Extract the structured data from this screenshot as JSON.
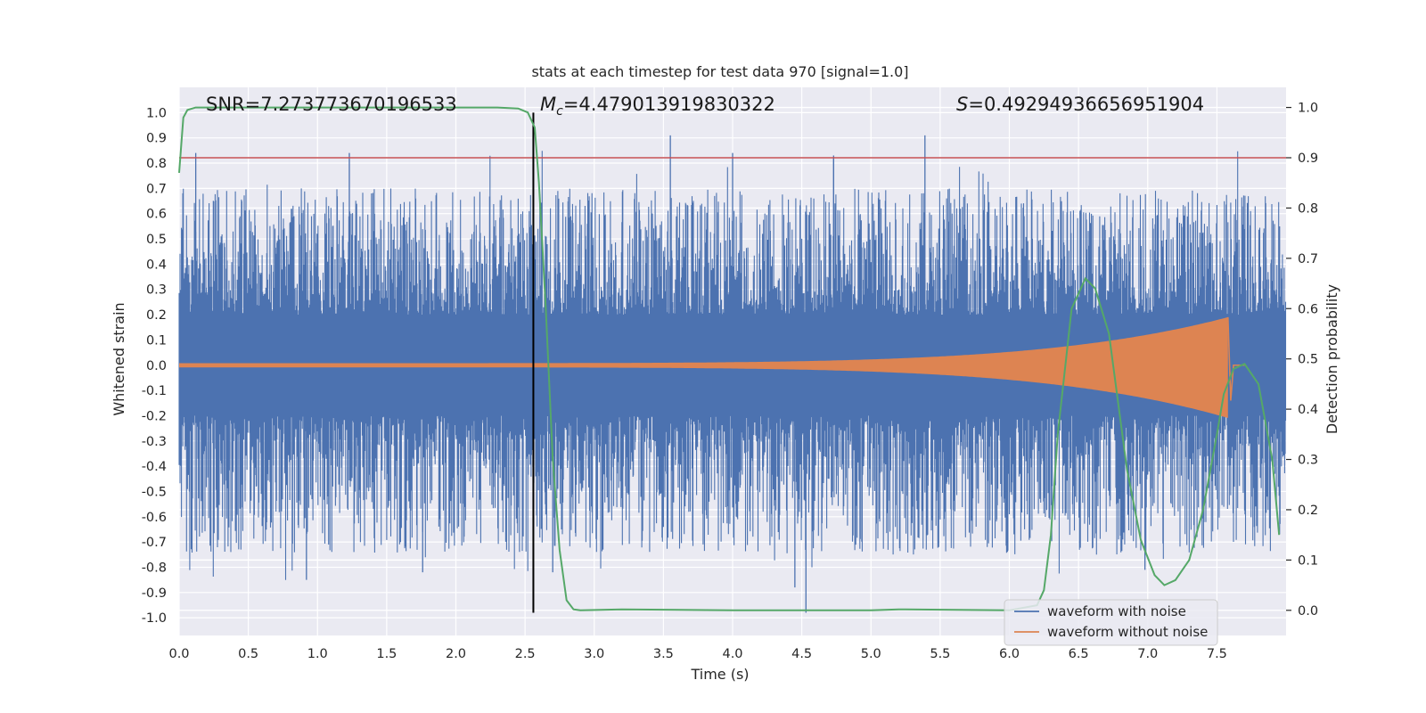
{
  "chart_data": {
    "type": "line",
    "title": "stats at each timestep for test data 970 [signal=1.0]",
    "xlabel": "Time (s)",
    "ylabel_left": "Whitened strain",
    "ylabel_right": "Detection probability",
    "xlim": [
      0.0,
      8.0
    ],
    "ylim_left": [
      -1.07,
      1.1
    ],
    "ylim_right": [
      -0.05,
      1.04
    ],
    "grid": true,
    "x_ticks": [
      "0.0",
      "0.5",
      "1.0",
      "1.5",
      "2.0",
      "2.5",
      "3.0",
      "3.5",
      "4.0",
      "4.5",
      "5.0",
      "5.5",
      "6.0",
      "6.5",
      "7.0",
      "7.5"
    ],
    "y_ticks_left": [
      "1.0",
      "0.9",
      "0.8",
      "0.7",
      "0.6",
      "0.5",
      "0.4",
      "0.3",
      "0.2",
      "0.1",
      "0.0",
      "-0.1",
      "-0.2",
      "-0.3",
      "-0.4",
      "-0.5",
      "-0.6",
      "-0.7",
      "-0.8",
      "-0.9",
      "-1.0"
    ],
    "y_ticks_right": [
      "1.0",
      "0.9",
      "0.8",
      "0.7",
      "0.6",
      "0.5",
      "0.4",
      "0.3",
      "0.2",
      "0.1",
      "0.0"
    ],
    "annotations": {
      "snr": "SNR=7.273773670196533",
      "mc_symbol": "M",
      "mc_sub": "c",
      "mc_value": "=4.479013919830322",
      "s_symbol": "S",
      "s_value": "=0.49294936656951904"
    },
    "threshold_line": {
      "y_right": 0.9,
      "color": "#c44e52"
    },
    "detection_marker": {
      "x": 2.56,
      "y_top": 1.0,
      "y_bottom": -0.98,
      "color": "#000000"
    },
    "series": [
      {
        "name": "waveform with noise",
        "axis": "left",
        "color": "#4c72b0",
        "kind": "dense-noise",
        "core_amplitude": 0.2,
        "typical_peak": 0.45,
        "max": 0.91,
        "min": -0.98,
        "x_range": [
          0.0,
          8.0
        ]
      },
      {
        "name": "waveform without noise",
        "axis": "left",
        "color": "#dd8452",
        "kind": "chirp",
        "x_range": [
          0.0,
          7.6
        ],
        "amplitude_start": 0.008,
        "amplitude_end": 0.19,
        "merger_time": 7.58
      },
      {
        "name": "detection probability",
        "axis": "right",
        "color": "#55a868",
        "x": [
          0.0,
          0.03,
          0.06,
          0.12,
          0.3,
          1.0,
          2.0,
          2.3,
          2.45,
          2.52,
          2.57,
          2.6,
          2.65,
          2.7,
          2.75,
          2.8,
          2.85,
          2.9,
          3.2,
          4.0,
          5.0,
          5.2,
          6.0,
          6.2,
          6.25,
          6.3,
          6.35,
          6.45,
          6.55,
          6.62,
          6.72,
          6.85,
          6.95,
          7.05,
          7.12,
          7.2,
          7.3,
          7.4,
          7.5,
          7.55,
          7.62,
          7.7,
          7.8,
          7.9,
          7.95
        ],
        "y": [
          0.87,
          0.98,
          0.995,
          1.0,
          1.0,
          1.0,
          1.0,
          1.0,
          0.998,
          0.99,
          0.96,
          0.85,
          0.6,
          0.3,
          0.12,
          0.02,
          0.002,
          0.0,
          0.002,
          0.0,
          0.0,
          0.002,
          0.0,
          0.01,
          0.04,
          0.15,
          0.35,
          0.6,
          0.66,
          0.64,
          0.55,
          0.28,
          0.14,
          0.07,
          0.05,
          0.06,
          0.1,
          0.2,
          0.35,
          0.43,
          0.48,
          0.49,
          0.45,
          0.3,
          0.15
        ]
      }
    ],
    "legend": {
      "position": "lower-right",
      "entries": [
        {
          "label": "waveform with noise",
          "color": "#4c72b0"
        },
        {
          "label": "waveform without noise",
          "color": "#dd8452"
        }
      ]
    }
  }
}
